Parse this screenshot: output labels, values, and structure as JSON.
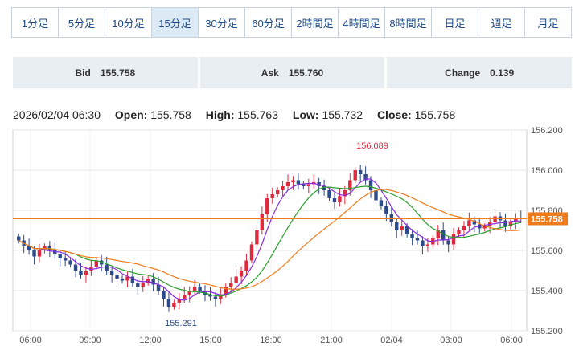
{
  "timeframe_tabs": [
    "1分足",
    "5分足",
    "10分足",
    "15分足",
    "30分足",
    "60分足",
    "2時間足",
    "4時間足",
    "8時間足",
    "日足",
    "週足",
    "月足"
  ],
  "active_tab": "15分足",
  "quotes": [
    {
      "label": "Bid",
      "value": "155.758"
    },
    {
      "label": "Ask",
      "value": "155.760"
    },
    {
      "label": "Change",
      "value": "0.139"
    }
  ],
  "ohlc": {
    "datetime": "2026/02/04 06:30",
    "open_label": "Open:",
    "open": "155.758",
    "high_label": "High:",
    "high": "155.763",
    "low_label": "Low:",
    "low": "155.732",
    "close_label": "Close:",
    "close": "155.758"
  },
  "colors": {
    "up": "#e0283e",
    "down": "#2d4a8a",
    "ma_fast": "#8a2be2",
    "ma_mid": "#2ca02c",
    "ma_slow": "#f07b1a",
    "price_line": "#f07b1a"
  },
  "chart_data": {
    "type": "candlestick",
    "y_ticks": [
      "156.200",
      "156.000",
      "155.800",
      "155.600",
      "155.400",
      "155.200"
    ],
    "ylim": [
      155.2,
      156.2
    ],
    "x_ticks": [
      "06:00",
      "09:00",
      "12:00",
      "15:00",
      "18:00",
      "21:00",
      "02/04",
      "03:00",
      "06:00"
    ],
    "current_price": "155.758",
    "high_annotation": "156.089",
    "low_annotation": "155.291",
    "close": [
      155.65,
      155.62,
      155.6,
      155.57,
      155.6,
      155.62,
      155.6,
      155.58,
      155.56,
      155.55,
      155.53,
      155.5,
      155.48,
      155.5,
      155.52,
      155.55,
      155.53,
      155.5,
      155.48,
      155.46,
      155.45,
      155.47,
      155.44,
      155.42,
      155.44,
      155.46,
      155.43,
      155.4,
      155.36,
      155.32,
      155.34,
      155.36,
      155.38,
      155.4,
      155.42,
      155.4,
      155.38,
      155.37,
      155.36,
      155.38,
      155.42,
      155.44,
      155.47,
      155.5,
      155.55,
      155.63,
      155.7,
      155.78,
      155.86,
      155.88,
      155.9,
      155.92,
      155.94,
      155.95,
      155.93,
      155.92,
      155.93,
      155.94,
      155.92,
      155.9,
      155.86,
      155.84,
      155.87,
      155.9,
      155.95,
      156.0,
      155.98,
      155.95,
      155.9,
      155.85,
      155.82,
      155.78,
      155.74,
      155.7,
      155.72,
      155.68,
      155.66,
      155.65,
      155.62,
      155.63,
      155.66,
      155.7,
      155.65,
      155.63,
      155.68,
      155.7,
      155.72,
      155.75,
      155.73,
      155.71,
      155.72,
      155.74,
      155.77,
      155.75,
      155.72,
      155.74,
      155.76,
      155.758
    ]
  }
}
